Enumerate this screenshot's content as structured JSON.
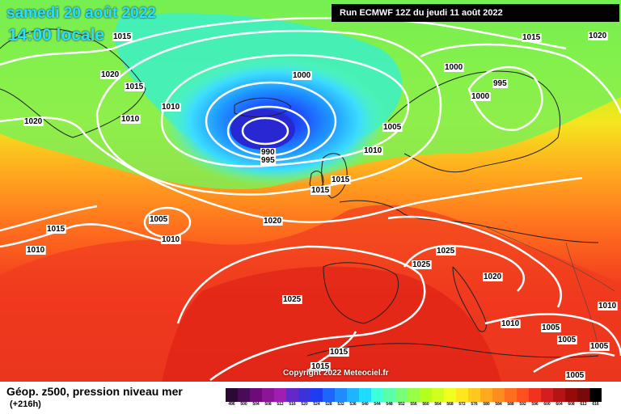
{
  "header": {
    "date_line": "samedi 20 août 2022",
    "time_line": "14:00 locale",
    "run_info": "Run ECMWF 12Z du jeudi 11 août 2022"
  },
  "footer": {
    "title": "Géop. z500, pression niveau mer",
    "lead": "(+216h)",
    "copyright": "Copyright 2022 Meteociel.fr"
  },
  "legend": {
    "values": [
      "496",
      "500",
      "504",
      "508",
      "512",
      "516",
      "520",
      "524",
      "528",
      "532",
      "536",
      "540",
      "544",
      "548",
      "552",
      "556",
      "560",
      "564",
      "568",
      "572",
      "576",
      "580",
      "584",
      "588",
      "592",
      "596",
      "600",
      "604",
      "608",
      "612",
      "616"
    ],
    "colors": [
      "#2a0a33",
      "#4b0a55",
      "#6e0a7a",
      "#8c1496",
      "#a01eb4",
      "#6428c8",
      "#3c32dc",
      "#1e3cf0",
      "#1e64ff",
      "#1e8cff",
      "#1eb4ff",
      "#1edcff",
      "#3cffdc",
      "#5affaa",
      "#78ff78",
      "#96ff46",
      "#b4ff1e",
      "#d2ff1e",
      "#f0ff1e",
      "#ffe61e",
      "#ffc81e",
      "#ffaa1e",
      "#ff8c1e",
      "#ff6e1e",
      "#ff501e",
      "#f0321e",
      "#d21e1e",
      "#b41414",
      "#960a0a",
      "#780a0a",
      "#000000"
    ]
  },
  "isobar_labels": [
    {
      "text": "1015",
      "name": "isobar-label-1015-nw"
    },
    {
      "text": "1020",
      "name": "isobar-label-1020-greenland"
    },
    {
      "text": "1015",
      "name": "isobar-label-1015-greenland"
    },
    {
      "text": "1010",
      "name": "isobar-label-1010-a"
    },
    {
      "text": "1010",
      "name": "isobar-label-1010-b"
    },
    {
      "text": "1020",
      "name": "isobar-label-1020-west"
    },
    {
      "text": "1000",
      "name": "isobar-label-1000-low"
    },
    {
      "text": "990",
      "name": "isobar-label-990"
    },
    {
      "text": "995",
      "name": "isobar-label-995"
    },
    {
      "text": "1005",
      "name": "isobar-label-1005-north"
    },
    {
      "text": "1010",
      "name": "isobar-label-1010-uk"
    },
    {
      "text": "1015",
      "name": "isobar-label-1015-uk"
    },
    {
      "text": "1015",
      "name": "isobar-label-1015-ireland"
    },
    {
      "text": "1020",
      "name": "isobar-label-1020-atlantic"
    },
    {
      "text": "1005",
      "name": "isobar-label-1005-mini-low"
    },
    {
      "text": "1010",
      "name": "isobar-label-1010-mini-low"
    },
    {
      "text": "1015",
      "name": "isobar-label-1015-west"
    },
    {
      "text": "1010",
      "name": "isobar-label-1010-west"
    },
    {
      "text": "1025",
      "name": "isobar-label-1025-azores"
    },
    {
      "text": "1025",
      "name": "isobar-label-1025-france"
    },
    {
      "text": "1025",
      "name": "isobar-label-1025-germany"
    },
    {
      "text": "1020",
      "name": "isobar-label-1020-central"
    },
    {
      "text": "1015",
      "name": "isobar-label-1015-ne"
    },
    {
      "text": "1020",
      "name": "isobar-label-1020-ne"
    },
    {
      "text": "1000",
      "name": "isobar-label-1000-scandi"
    },
    {
      "text": "995",
      "name": "isobar-label-995-scandi"
    },
    {
      "text": "1000",
      "name": "isobar-label-1000-scandi-b"
    },
    {
      "text": "1010",
      "name": "isobar-label-1010-italy"
    },
    {
      "text": "1005",
      "name": "isobar-label-1005-greece"
    },
    {
      "text": "1005",
      "name": "isobar-label-1005-east"
    },
    {
      "text": "1010",
      "name": "isobar-label-1010-east"
    },
    {
      "text": "1005",
      "name": "isobar-label-1005-se"
    },
    {
      "text": "1015",
      "name": "isobar-label-1015-spain"
    },
    {
      "text": "1015",
      "name": "isobar-label-1015-spain-b"
    },
    {
      "text": "1005",
      "name": "isobar-label-1005-africa"
    }
  ]
}
